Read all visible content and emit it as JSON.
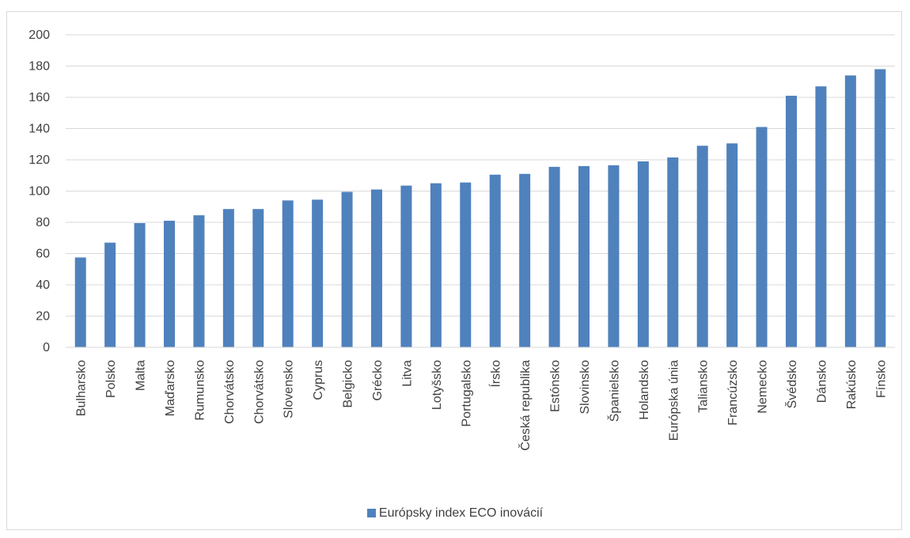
{
  "chart_data": {
    "type": "bar",
    "categories": [
      "Bulharsko",
      "Polsko",
      "Malta",
      "Maďarsko",
      "Rumunsko",
      "Chorvátsko",
      "Chorvátsko",
      "Slovensko",
      "Cyprus",
      "Belgicko",
      "Grécko",
      "Litva",
      "Lotyšsko",
      "Portugalsko",
      "Írsko",
      "Česká republika",
      "Estónsko",
      "Slovinsko",
      "Španielsko",
      "Holandsko",
      "Európska únia",
      "Taliansko",
      "Francúzsko",
      "Nemecko",
      "Švédsko",
      "Dánsko",
      "Rakúsko",
      "Fínsko"
    ],
    "series": [
      {
        "name": "Európsky index ECO inovácií",
        "values": [
          57.5,
          67,
          79.5,
          81,
          84.5,
          88.5,
          88.5,
          94,
          94.5,
          99.5,
          101,
          103.5,
          105,
          105.5,
          110.5,
          111,
          115.5,
          116,
          116.5,
          119,
          121.5,
          129,
          130.5,
          141,
          161,
          167,
          174,
          178
        ]
      }
    ],
    "title": "",
    "xlabel": "",
    "ylabel": "",
    "ylim": [
      0,
      200
    ],
    "yticks": [
      "0",
      "20",
      "40",
      "60",
      "80",
      "100",
      "120",
      "140",
      "160",
      "180",
      "200"
    ],
    "grid": true,
    "legend_position": "bottom",
    "colors": {
      "bar": "#4f81bd",
      "grid": "#d9d9d9",
      "text": "#404040"
    }
  }
}
